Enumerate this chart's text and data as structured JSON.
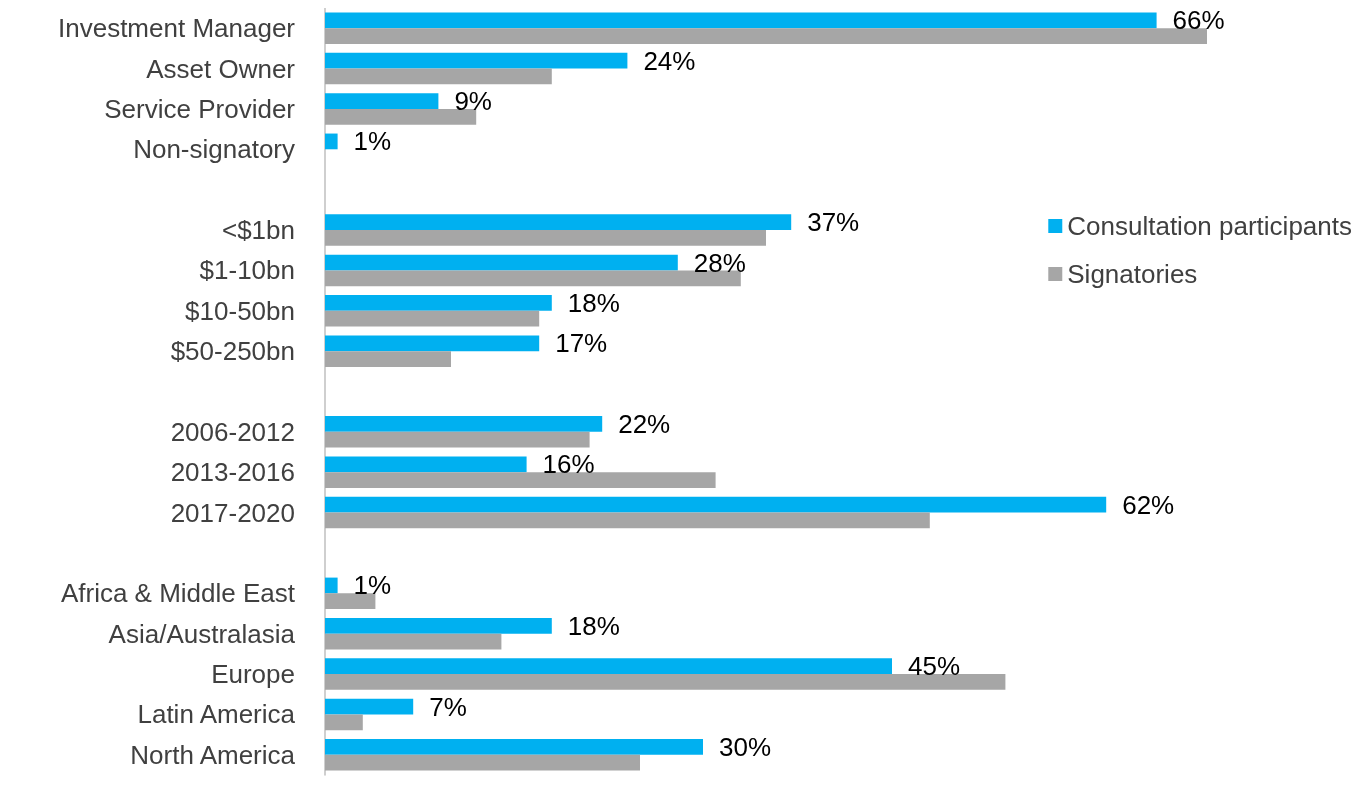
{
  "chart_data": {
    "type": "bar",
    "orientation": "horizontal",
    "categories": [
      "Investment Manager",
      "Asset Owner",
      "Service Provider",
      "Non-signatory",
      null,
      "<$1bn",
      "$1-10bn",
      "$10-50bn",
      "$50-250bn",
      null,
      "2006-2012",
      "2013-2016",
      "2017-2020",
      null,
      "Africa & Middle East",
      "Asia/Australasia",
      "Europe",
      "Latin America",
      "North America"
    ],
    "series": [
      {
        "name": "Consultation participants",
        "color": "#00b0f0",
        "values": [
          66,
          24,
          9,
          1,
          null,
          37,
          28,
          18,
          17,
          null,
          22,
          16,
          62,
          null,
          1,
          18,
          45,
          7,
          30
        ],
        "value_labels": [
          "66%",
          "24%",
          "9%",
          "1%",
          null,
          "37%",
          "28%",
          "18%",
          "17%",
          null,
          "22%",
          "16%",
          "62%",
          null,
          "1%",
          "18%",
          "45%",
          "7%",
          "30%"
        ]
      },
      {
        "name": "Signatories",
        "color": "#a6a6a6",
        "values": [
          70,
          18,
          12,
          null,
          null,
          35,
          33,
          17,
          10,
          null,
          21,
          31,
          48,
          null,
          4,
          14,
          54,
          3,
          25
        ]
      }
    ],
    "xlim": [
      0,
      70
    ],
    "tick_labels": "y",
    "grid": false,
    "legend": "right"
  }
}
